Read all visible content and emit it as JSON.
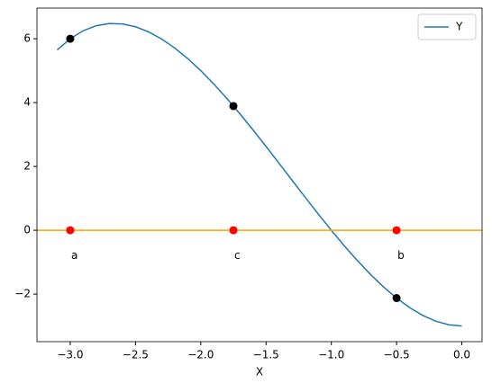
{
  "chart_data": {
    "type": "line",
    "xlabel": "X",
    "x": [
      -3.1,
      -3.0,
      -2.9,
      -2.8,
      -2.7,
      -2.6,
      -2.5,
      -2.4,
      -2.3,
      -2.2,
      -2.1,
      -2.0,
      -1.9,
      -1.8,
      -1.7,
      -1.6,
      -1.5,
      -1.4,
      -1.3,
      -1.2,
      -1.1,
      -1.0,
      -0.9,
      -0.8,
      -0.7,
      -0.6,
      -0.5,
      -0.4,
      -0.3,
      -0.2,
      -0.1,
      0.0
    ],
    "series": [
      {
        "name": "Y",
        "color": "#1f77b4",
        "values": [
          5.649,
          6,
          6.251,
          6.408,
          6.477,
          6.464,
          6.375,
          6.216,
          5.993,
          5.712,
          5.379,
          5,
          4.581,
          4.128,
          3.647,
          3.144,
          2.625,
          2.096,
          1.563,
          1.032,
          0.509,
          0,
          -0.489,
          -0.952,
          -1.383,
          -1.776,
          -2.125,
          -2.424,
          -2.667,
          -2.848,
          -2.961,
          -3
        ]
      }
    ],
    "points": {
      "x": [
        -3.0,
        -1.75,
        -0.5
      ],
      "values": [
        6,
        3.891,
        -2.125
      ],
      "color": "#000000"
    },
    "hline": {
      "y": 0,
      "color": "#ffa500"
    },
    "zero_points": {
      "x": [
        -3.0,
        -1.75,
        -0.5
      ],
      "values": [
        0,
        0,
        0
      ],
      "color": "#ff0000"
    },
    "annotations": [
      {
        "text": "a",
        "x": -3.0,
        "y": -1
      },
      {
        "text": "c",
        "x": -1.75,
        "y": -1
      },
      {
        "text": "b",
        "x": -0.5,
        "y": -1
      }
    ],
    "xlim": [
      -3.255,
      0.155
    ],
    "ylim": [
      -3.49,
      6.96
    ],
    "xticks": [
      {
        "value": -3.0,
        "label": "−3.0"
      },
      {
        "value": -2.5,
        "label": "−2.5"
      },
      {
        "value": -2.0,
        "label": "−2.0"
      },
      {
        "value": -1.5,
        "label": "−1.5"
      },
      {
        "value": -1.0,
        "label": "−1.0"
      },
      {
        "value": -0.5,
        "label": "−0.5"
      },
      {
        "value": 0,
        "label": "0.0"
      }
    ],
    "yticks": [
      {
        "value": -2,
        "label": "−2"
      },
      0,
      2,
      4,
      6
    ],
    "legend": "upper right"
  }
}
